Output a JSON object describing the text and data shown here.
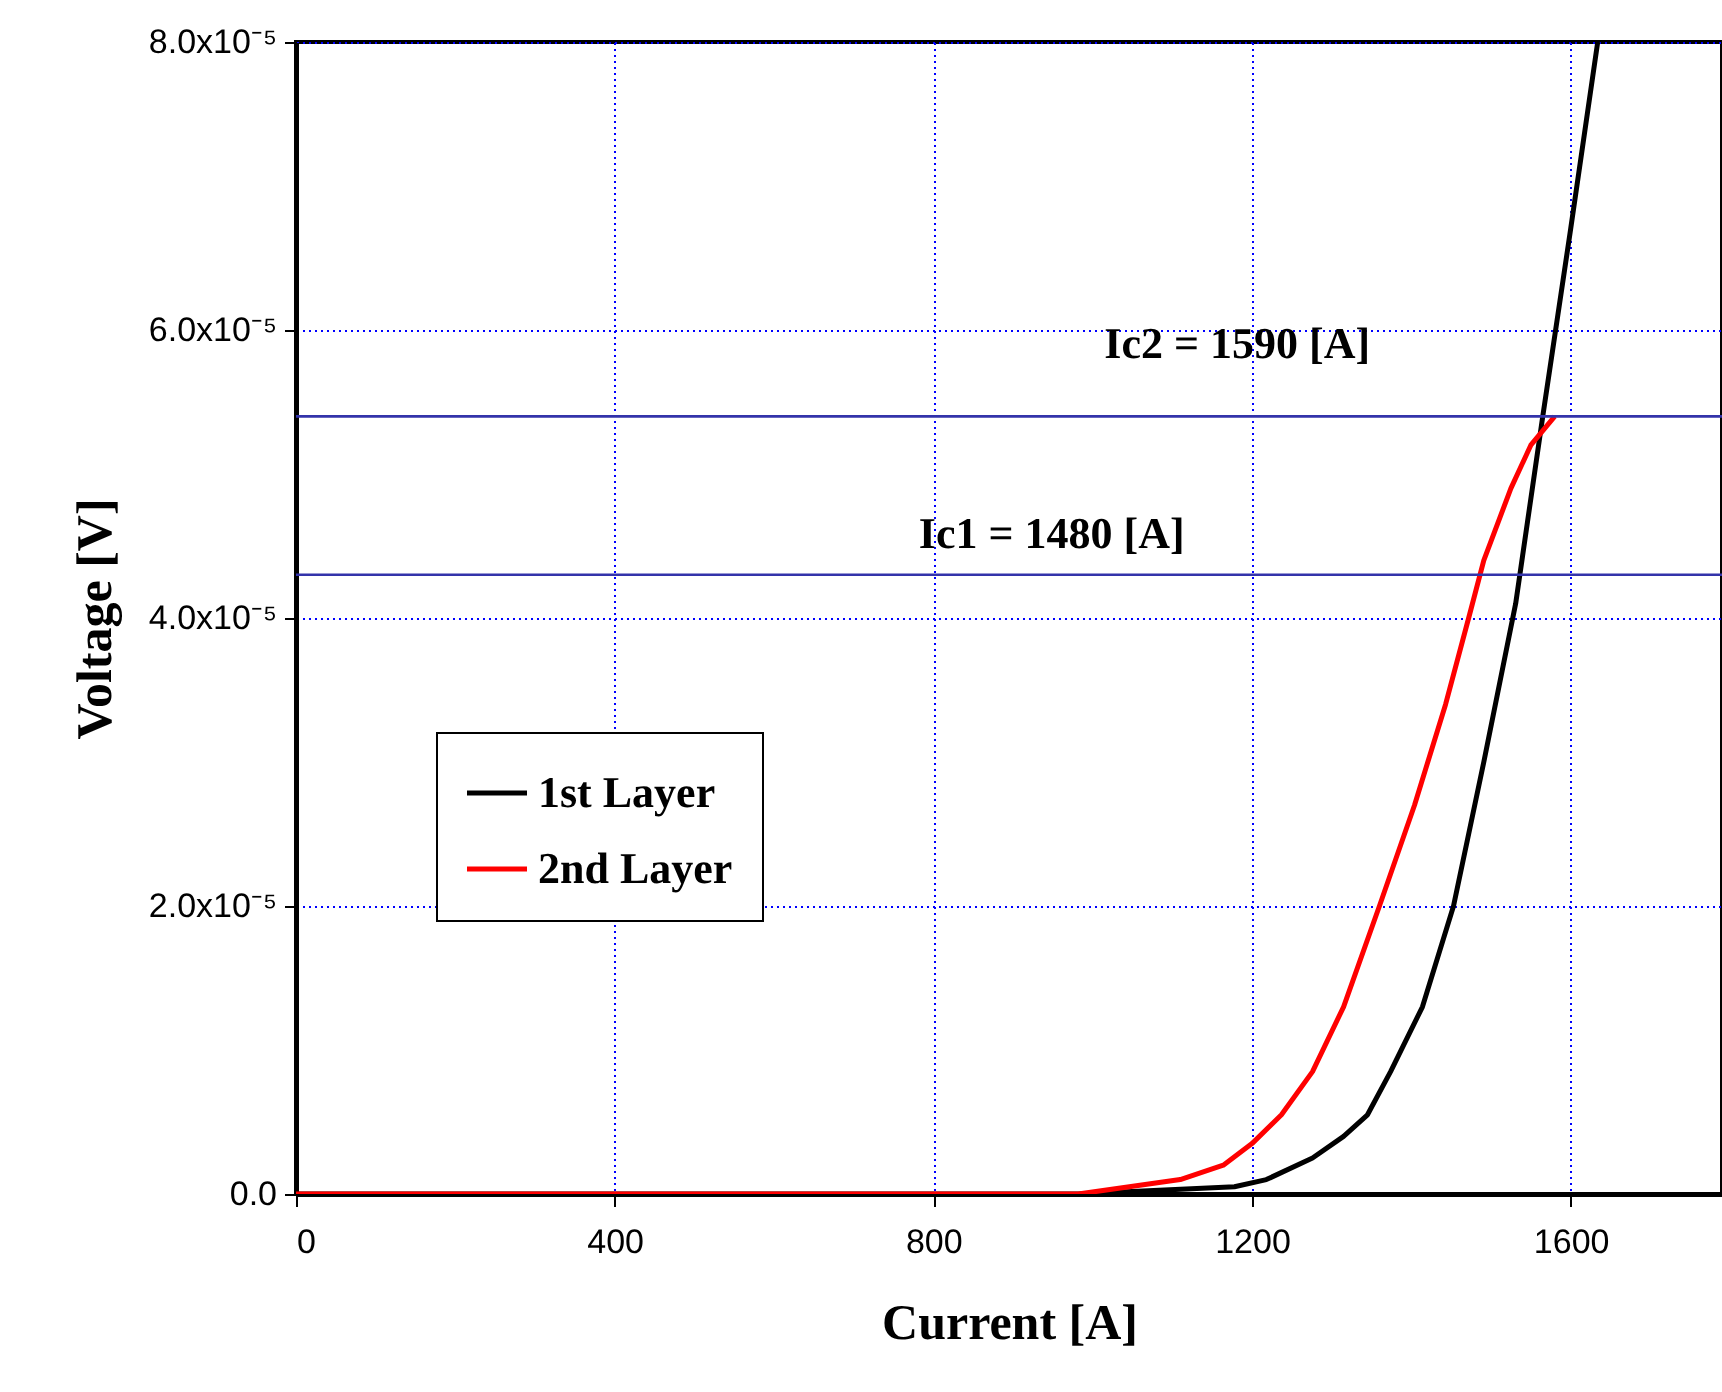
{
  "chart_data": {
    "type": "line",
    "xlabel": "Current [A]",
    "ylabel": "Voltage [V]",
    "xlim": [
      0,
      1790
    ],
    "xticks": [
      0,
      400,
      800,
      1200,
      1600
    ],
    "ylim": [
      0,
      8e-05
    ],
    "yticks": [
      {
        "value": 0,
        "label": "0.0"
      },
      {
        "value": 2e-05,
        "label": "2.0x10⁻⁵"
      },
      {
        "value": 4e-05,
        "label": "4.0x10⁻⁵"
      },
      {
        "value": 6e-05,
        "label": "6.0x10⁻⁵"
      },
      {
        "value": 8e-05,
        "label": "8.0x10⁻⁵"
      }
    ],
    "grid": true,
    "legend": "left",
    "line_style": "solid",
    "series": [
      {
        "name": "1st Layer",
        "color": "#000000",
        "x": [
          0,
          982,
          1178,
          1218,
          1276,
          1315,
          1345,
          1374,
          1414,
          1453,
          1491,
          1531,
          1565,
          1600,
          1634
        ],
        "values": [
          0,
          0,
          5e-07,
          1e-06,
          2.5e-06,
          4e-06,
          5.5e-06,
          8.5e-06,
          1.3e-05,
          2e-05,
          3e-05,
          4.1e-05,
          5.4e-05,
          6.7e-05,
          8e-05
        ]
      },
      {
        "name": "2nd Layer",
        "color": "#ff0000",
        "x": [
          0,
          982,
          1110,
          1164,
          1200,
          1237,
          1276,
          1315,
          1360,
          1404,
          1443,
          1472,
          1491,
          1525,
          1550,
          1580
        ],
        "values": [
          0,
          0,
          1e-06,
          2e-06,
          3.5e-06,
          5.5e-06,
          8.5e-06,
          1.3e-05,
          2e-05,
          2.7e-05,
          3.4e-05,
          4e-05,
          4.4e-05,
          4.9e-05,
          5.2e-05,
          5.4e-05
        ]
      }
    ],
    "ref_lines": [
      {
        "axis": "y",
        "value": 5.4e-05,
        "color": "#3333aa"
      },
      {
        "axis": "y",
        "value": 4.3e-05,
        "color": "#3333aa"
      }
    ],
    "annotations": [
      "Ic2 = 1590 [A]",
      "Ic1 = 1480 [A]"
    ]
  }
}
